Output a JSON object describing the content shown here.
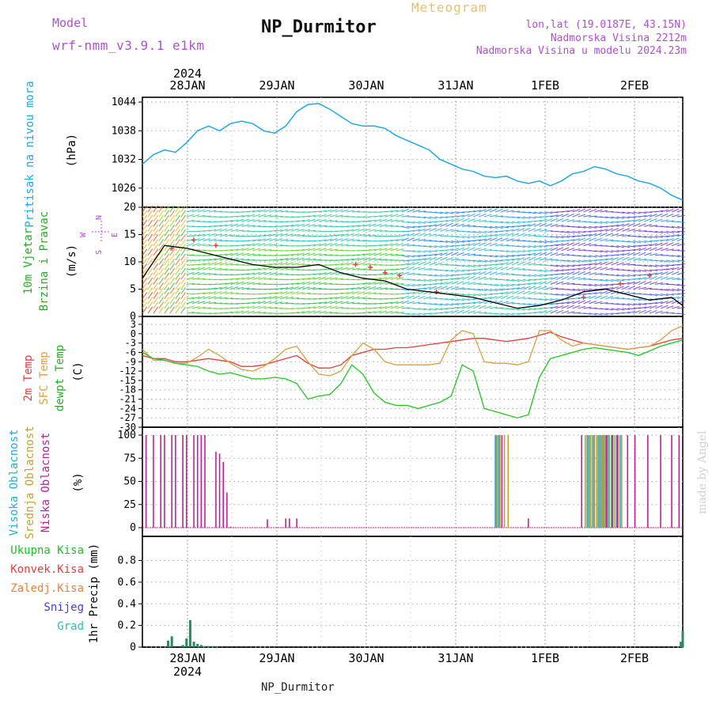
{
  "header": {
    "model_label": "Model",
    "model_name": "wrf-nmm_v3.9.1 e1km",
    "station": "NP_Durmitor",
    "product": "Meteogram",
    "coords": "lon,lat (19.0187E, 43.15N)",
    "elevation": "Nadmorska Visina 2212m",
    "model_elevation": "Nadmorska Visina u modelu 2024.23m",
    "credit": "made by Angel",
    "footer": "NP_Durmitor"
  },
  "colors": {
    "pressure": "#1fa8e8",
    "temp2m": "#e83c3c",
    "sfc": "#d9a040",
    "dewpt": "#1ec81e",
    "high_cloud": "#20b0e0",
    "mid_cloud": "#c8a030",
    "low_cloud": "#c0209a",
    "precip_total": "#20c020",
    "precip_conv": "#e83c3c",
    "precip_frozen": "#f08030",
    "snow": "#4040e0",
    "hail": "#20c0c0",
    "wind_legend": "#c040e0"
  },
  "chart_data": [
    {
      "type": "line",
      "title": "Pritisak na nivou mora",
      "ylabel": "(hPa)",
      "ylim": [
        1022,
        1045
      ],
      "yticks": [
        "1044",
        "1038",
        "1032",
        "1026"
      ],
      "x_top_labels": [
        "2024",
        "28JAN",
        "29JAN",
        "30JAN",
        "31JAN",
        "1FEB",
        "2FEB"
      ],
      "x": [
        0,
        3,
        6,
        9,
        12,
        15,
        18,
        21,
        24,
        27,
        30,
        33,
        36,
        39,
        42,
        45,
        48,
        51,
        54,
        57,
        60,
        63,
        66,
        69,
        72,
        75,
        78,
        81,
        84,
        87,
        90,
        93,
        96,
        99,
        102,
        105,
        108,
        111,
        114,
        117,
        120,
        123,
        126,
        129,
        132,
        135,
        138,
        141,
        144,
        147
      ],
      "series": [
        {
          "values": [
            1031,
            1033,
            1034,
            1033.5,
            1035.5,
            1038,
            1039,
            1038,
            1039.5,
            1040,
            1039.5,
            1038,
            1037.5,
            1039,
            1042,
            1043.5,
            1043.7,
            1042.5,
            1041,
            1039.5,
            1039,
            1039,
            1038.5,
            1037,
            1036,
            1035,
            1034,
            1032,
            1031,
            1030,
            1029.5,
            1028.5,
            1028.2,
            1028.5,
            1027.5,
            1027,
            1027.5,
            1026.5,
            1027.5,
            1029,
            1029.5,
            1030.5,
            1030,
            1029,
            1028.5,
            1027.5,
            1027,
            1026,
            1024.5,
            1023.5
          ]
        }
      ]
    },
    {
      "type": "line",
      "title": "10m Vjetar Brzina i Pravac",
      "ylabel": "(m/s)",
      "ylim": [
        0,
        20
      ],
      "yticks": [
        "20",
        "15",
        "10",
        "5",
        "0"
      ],
      "compass": [
        "N",
        "E",
        "S",
        "W"
      ],
      "x": [
        0,
        6,
        12,
        18,
        24,
        30,
        36,
        42,
        48,
        54,
        60,
        66,
        72,
        78,
        84,
        90,
        96,
        102,
        108,
        114,
        120,
        126,
        132,
        138,
        144,
        147
      ],
      "series": [
        {
          "name": "speed",
          "values": [
            7,
            13,
            12.5,
            11.5,
            10.5,
            9.5,
            9,
            9,
            9.5,
            8,
            7,
            6.5,
            5,
            4.5,
            4,
            3.5,
            2.5,
            1.5,
            2,
            3,
            4.5,
            5,
            4,
            3,
            3.5,
            2
          ]
        }
      ]
    },
    {
      "type": "line",
      "title": "2m Temp / SFC Temp / dewpt Temp",
      "ylabel": "(C)",
      "ylim": [
        -30,
        3
      ],
      "yticks": [
        "3",
        "0",
        "-3",
        "-6",
        "-9",
        "-12",
        "-15",
        "-18",
        "-21",
        "-24",
        "-27",
        "-30"
      ],
      "x": [
        0,
        3,
        6,
        9,
        12,
        15,
        18,
        21,
        24,
        27,
        30,
        33,
        36,
        39,
        42,
        45,
        48,
        51,
        54,
        57,
        60,
        63,
        66,
        69,
        72,
        75,
        78,
        81,
        84,
        87,
        90,
        93,
        96,
        99,
        102,
        105,
        108,
        111,
        114,
        117,
        120,
        123,
        126,
        129,
        132,
        135,
        138,
        141,
        144,
        147
      ],
      "series": [
        {
          "name": "2m Temp",
          "values": [
            -7,
            -8,
            -8,
            -9,
            -9,
            -8.5,
            -8,
            -8.5,
            -9,
            -10.5,
            -10.5,
            -10,
            -9,
            -8,
            -7,
            -9.5,
            -11,
            -11,
            -10,
            -7,
            -6,
            -5,
            -5,
            -4.5,
            -4.5,
            -4,
            -3.5,
            -3,
            -2.5,
            -2,
            -1.5,
            -1.5,
            -2,
            -2.5,
            -2,
            -1.5,
            -0.5,
            0.5,
            -1,
            -2,
            -3,
            -3.5,
            -4,
            -4.5,
            -5,
            -4.5,
            -4,
            -3,
            -2,
            -1.5
          ]
        },
        {
          "name": "SFC Temp",
          "values": [
            -5,
            -8.5,
            -8.5,
            -9.5,
            -9.5,
            -7.5,
            -5,
            -7,
            -9.5,
            -11.5,
            -12,
            -10.5,
            -8,
            -5,
            -4,
            -9,
            -13,
            -13.5,
            -12,
            -7,
            -3,
            -5,
            -9,
            -10,
            -10,
            -10,
            -10,
            -9.5,
            -2,
            1,
            0,
            -9,
            -9.5,
            -9.5,
            -10,
            -9,
            1,
            1,
            -2,
            -4,
            -3,
            -3.5,
            -4,
            -4.5,
            -5,
            -4.5,
            -4,
            -2,
            1,
            2.5
          ]
        },
        {
          "name": "dewpt Temp",
          "values": [
            -6,
            -8,
            -8.5,
            -9.5,
            -10,
            -10.5,
            -12,
            -13,
            -12.5,
            -13.5,
            -14.5,
            -14.5,
            -14,
            -14.5,
            -16,
            -21,
            -20,
            -19.5,
            -16,
            -10,
            -13,
            -19,
            -22,
            -23,
            -23,
            -24,
            -23,
            -22,
            -20,
            -10,
            -12,
            -24,
            -25,
            -26,
            -27,
            -26,
            -14,
            -8,
            -7,
            -6,
            -5,
            -4.5,
            -5,
            -5.5,
            -6,
            -7,
            -5.5,
            -4,
            -3,
            -2
          ]
        }
      ]
    },
    {
      "type": "bar",
      "title": "Visoka / Srednja / Niska Oblacnost",
      "ylabel": "(%)",
      "ylim": [
        0,
        100
      ],
      "yticks": [
        "100",
        "75",
        "50",
        "25",
        "0"
      ],
      "series": [
        {
          "name": "Visoka Oblacnost",
          "x": [
            96.0,
            96.3,
            96.6,
            97.0,
            121.0,
            121.6,
            122.5,
            123.0,
            124.0,
            124.5,
            125.0,
            125.6,
            126.5,
            127.0,
            128.0,
            129.0,
            130.0
          ],
          "values": [
            100,
            100,
            100,
            100,
            100,
            100,
            100,
            100,
            100,
            100,
            100,
            100,
            100,
            100,
            100,
            100,
            100
          ]
        },
        {
          "name": "Srednja Oblacnost",
          "x": [
            96.5,
            97.3,
            98.5,
            99.5,
            120.5,
            121.3,
            122.0,
            122.8,
            123.6,
            124.3,
            124.8,
            125.3,
            126.0,
            126.8,
            127.6,
            128.5,
            129.5,
            130.4
          ],
          "values": [
            100,
            100,
            100,
            100,
            100,
            100,
            100,
            100,
            100,
            100,
            100,
            100,
            100,
            100,
            100,
            100,
            100,
            100
          ]
        },
        {
          "name": "Niska Oblacnost",
          "x": [
            1,
            3,
            5,
            6,
            8,
            9,
            11,
            12,
            14,
            15,
            16,
            17,
            20,
            21,
            22,
            23,
            24,
            34,
            39,
            40,
            42,
            97.8,
            105,
            119.5,
            126.2,
            127.8,
            129.2,
            132,
            134,
            137.5,
            141,
            144,
            146
          ],
          "values": [
            100,
            100,
            100,
            100,
            100,
            100,
            100,
            100,
            100,
            100,
            100,
            100,
            82,
            80,
            71,
            38,
            1,
            9,
            10,
            10,
            10,
            100,
            10,
            100,
            100,
            100,
            100,
            100,
            100,
            100,
            100,
            100,
            100
          ]
        }
      ]
    },
    {
      "type": "bar",
      "title": "1hr Precip",
      "ylabel": "1hr Precip (mm)",
      "ylim": [
        0,
        1
      ],
      "yticks": [
        "0.8",
        "0.6",
        "0.4",
        "0.2",
        "0"
      ],
      "x_bottom_labels": [
        "28JAN",
        "29JAN",
        "30JAN",
        "31JAN",
        "1FEB",
        "2FEB"
      ],
      "x_bottom_year": "2024",
      "legend": [
        "Ukupna Kisa",
        "Konvek.Kisa",
        "Zaledj.Kisa",
        "Snijeg",
        "Grad"
      ],
      "series": [
        {
          "name": "Snijeg",
          "x": [
            7,
            8,
            11,
            12,
            13,
            14,
            15,
            16,
            17,
            18,
            19,
            20,
            146.5,
            147
          ],
          "values": [
            0.06,
            0.1,
            0.02,
            0.08,
            0.25,
            0.05,
            0.03,
            0.02,
            0.01,
            0.01,
            0.01,
            0.01,
            0.05,
            0.15
          ]
        }
      ]
    }
  ]
}
